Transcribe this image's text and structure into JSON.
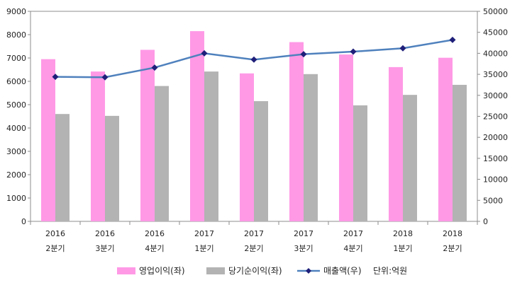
{
  "chart_data": {
    "type": "bar",
    "categories": [
      [
        "2016",
        "2분기"
      ],
      [
        "2016",
        "3분기"
      ],
      [
        "2016",
        "4분기"
      ],
      [
        "2017",
        "1분기"
      ],
      [
        "2017",
        "2분기"
      ],
      [
        "2017",
        "3분기"
      ],
      [
        "2017",
        "4분기"
      ],
      [
        "2018",
        "1분기"
      ],
      [
        "2018",
        "2분기"
      ]
    ],
    "series": [
      {
        "name": "영업이익(좌)",
        "type": "bar",
        "axis": "left",
        "color": "#ff99e6",
        "values": [
          6950,
          6420,
          7350,
          8150,
          6340,
          7680,
          7150,
          6610,
          7010
        ]
      },
      {
        "name": "당기순이익(좌)",
        "type": "bar",
        "axis": "left",
        "color": "#b3b3b3",
        "values": [
          4600,
          4520,
          5800,
          6420,
          5150,
          6310,
          4970,
          5420,
          5850
        ]
      },
      {
        "name": "매출액(우)",
        "type": "line",
        "axis": "right",
        "color": "#4f81bd",
        "marker_color": "#1f1f7a",
        "values": [
          34400,
          34300,
          36600,
          40000,
          38500,
          39800,
          40400,
          41200,
          43200
        ]
      }
    ],
    "y_left": {
      "range": [
        0,
        9000
      ],
      "step": 1000
    },
    "y_right": {
      "range": [
        0,
        50000
      ],
      "step": 5000
    },
    "unit_note": "단위:억원",
    "legend_position": "bottom"
  }
}
